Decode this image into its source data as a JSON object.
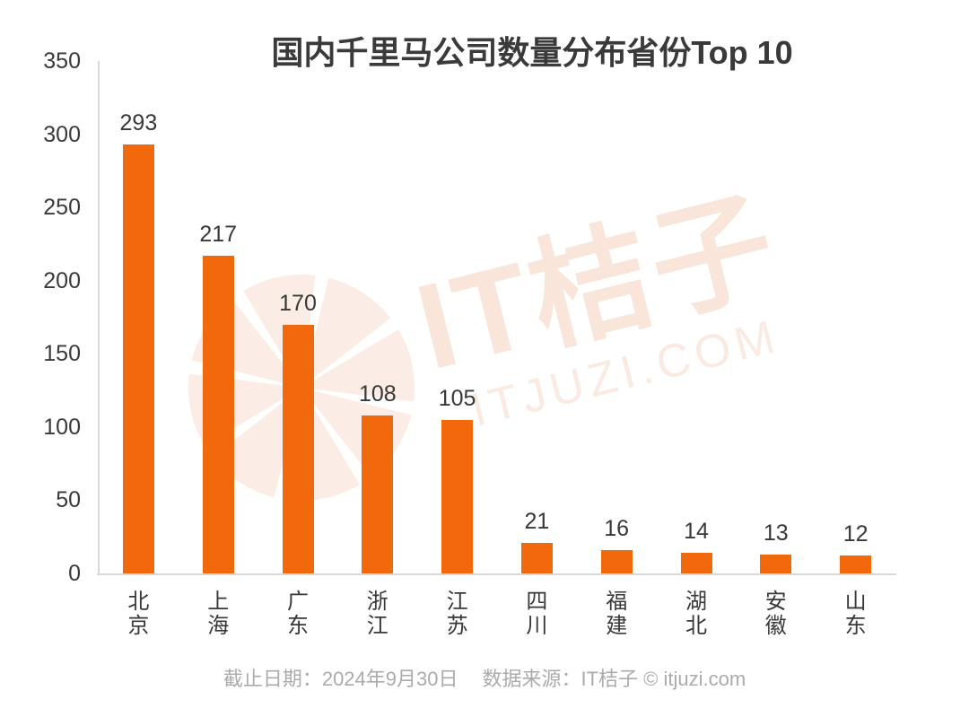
{
  "title": "国内千里马公司数量分布省份Top 10",
  "watermark": {
    "brand_text": "IT桔子",
    "domain_text": "ITJUZI.COM",
    "logo_icon": "orange-slice-circle"
  },
  "footer": {
    "date_label": "截止日期：2024年9月30日",
    "source_label": "数据来源：IT桔子 © itjuzi.com"
  },
  "colors": {
    "bar": "#f2690d",
    "axis_line": "#d9d9d9",
    "text_dark": "#3a3a3a",
    "footer_text": "#ababab",
    "watermark_text": "#f9e5da",
    "watermark_logo": "#fbece5"
  },
  "chart_data": {
    "type": "bar",
    "title": "国内千里马公司数量分布省份Top 10",
    "categories": [
      "北京",
      "上海",
      "广东",
      "浙江",
      "江苏",
      "四川",
      "福建",
      "湖北",
      "安徽",
      "山东"
    ],
    "values": [
      293,
      217,
      170,
      108,
      105,
      21,
      16,
      14,
      13,
      12
    ],
    "xlabel": "",
    "ylabel": "",
    "ylim": [
      0,
      350
    ],
    "yticks": [
      0,
      50,
      100,
      150,
      200,
      250,
      300,
      350
    ],
    "grid": false,
    "legend": false,
    "value_labels_shown": true
  }
}
